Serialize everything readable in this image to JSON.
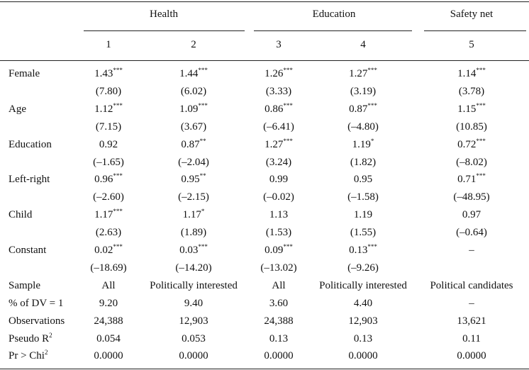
{
  "header": {
    "groups": [
      {
        "label": "Health"
      },
      {
        "label": "Education"
      },
      {
        "label": "Safety net"
      }
    ],
    "columns": [
      "1",
      "2",
      "3",
      "4",
      "5"
    ]
  },
  "rows": [
    {
      "label": "Female",
      "cells": [
        {
          "text": "1.43",
          "stars": "***"
        },
        {
          "text": "1.44",
          "stars": "***"
        },
        {
          "text": "1.26",
          "stars": "***"
        },
        {
          "text": "1.27",
          "stars": "***"
        },
        {
          "text": "1.14",
          "stars": "***"
        }
      ]
    },
    {
      "cells": [
        {
          "text": "(7.80)"
        },
        {
          "text": "(6.02)"
        },
        {
          "text": "(3.33)"
        },
        {
          "text": "(3.19)"
        },
        {
          "text": "(3.78)"
        }
      ]
    },
    {
      "label": "Age",
      "cells": [
        {
          "text": "1.12",
          "stars": "***"
        },
        {
          "text": "1.09",
          "stars": "***"
        },
        {
          "text": "0.86",
          "stars": "***"
        },
        {
          "text": "0.87",
          "stars": "***"
        },
        {
          "text": "1.15",
          "stars": "***"
        }
      ]
    },
    {
      "cells": [
        {
          "text": "(7.15)"
        },
        {
          "text": "(3.67)"
        },
        {
          "text": "(–6.41)"
        },
        {
          "text": "(–4.80)"
        },
        {
          "text": "(10.85)"
        }
      ]
    },
    {
      "label": "Education",
      "cells": [
        {
          "text": "0.92"
        },
        {
          "text": "0.87",
          "stars": "**"
        },
        {
          "text": "1.27",
          "stars": "***"
        },
        {
          "text": "1.19",
          "stars": "*"
        },
        {
          "text": "0.72",
          "stars": "***"
        }
      ]
    },
    {
      "cells": [
        {
          "text": "(–1.65)"
        },
        {
          "text": "(–2.04)"
        },
        {
          "text": "(3.24)"
        },
        {
          "text": "(1.82)"
        },
        {
          "text": "(–8.02)"
        }
      ]
    },
    {
      "label": "Left-right",
      "cells": [
        {
          "text": "0.96",
          "stars": "***"
        },
        {
          "text": "0.95",
          "stars": "**"
        },
        {
          "text": "0.99"
        },
        {
          "text": "0.95"
        },
        {
          "text": "0.71",
          "stars": "***"
        }
      ]
    },
    {
      "cells": [
        {
          "text": "(–2.60)"
        },
        {
          "text": "(–2.15)"
        },
        {
          "text": "(–0.02)"
        },
        {
          "text": "(–1.58)"
        },
        {
          "text": "(–48.95)"
        }
      ]
    },
    {
      "label": "Child",
      "cells": [
        {
          "text": "1.17",
          "stars": "***"
        },
        {
          "text": "1.17",
          "stars": "*"
        },
        {
          "text": "1.13"
        },
        {
          "text": "1.19"
        },
        {
          "text": "0.97"
        }
      ]
    },
    {
      "cells": [
        {
          "text": "(2.63)"
        },
        {
          "text": "(1.89)"
        },
        {
          "text": "(1.53)"
        },
        {
          "text": "(1.55)"
        },
        {
          "text": "(–0.64)"
        }
      ]
    },
    {
      "label": "Constant",
      "cells": [
        {
          "text": "0.02",
          "stars": "***"
        },
        {
          "text": "0.03",
          "stars": "***"
        },
        {
          "text": "0.09",
          "stars": "***"
        },
        {
          "text": "0.13",
          "stars": "***"
        },
        {
          "text": "–"
        }
      ]
    },
    {
      "cells": [
        {
          "text": "(–18.69)"
        },
        {
          "text": "(–14.20)"
        },
        {
          "text": "(–13.02)"
        },
        {
          "text": "(–9.26)"
        },
        null
      ]
    },
    {
      "label": "Sample",
      "cells": [
        {
          "text": "All"
        },
        {
          "text": "Politically interested"
        },
        {
          "text": "All"
        },
        {
          "text": "Politically interested"
        },
        {
          "text": "Political candidates"
        }
      ]
    },
    {
      "label": "% of DV = 1",
      "cells": [
        {
          "text": "9.20"
        },
        {
          "text": "9.40"
        },
        {
          "text": "3.60"
        },
        {
          "text": "4.40"
        },
        {
          "text": "–"
        }
      ]
    },
    {
      "label": "Observations",
      "cells": [
        {
          "text": "24,388"
        },
        {
          "text": "12,903"
        },
        {
          "text": "24,388"
        },
        {
          "text": "12,903"
        },
        {
          "text": "13,621"
        }
      ]
    },
    {
      "label": "Pseudo R",
      "label_sup": "2",
      "cells": [
        {
          "text": "0.054"
        },
        {
          "text": "0.053"
        },
        {
          "text": "0.13"
        },
        {
          "text": "0.13"
        },
        {
          "text": "0.11"
        }
      ]
    },
    {
      "label": "Pr > Chi",
      "label_sup": "2",
      "cells": [
        {
          "text": "0.0000"
        },
        {
          "text": "0.0000"
        },
        {
          "text": "0.0000"
        },
        {
          "text": "0.0000"
        },
        {
          "text": "0.0000"
        }
      ]
    }
  ]
}
